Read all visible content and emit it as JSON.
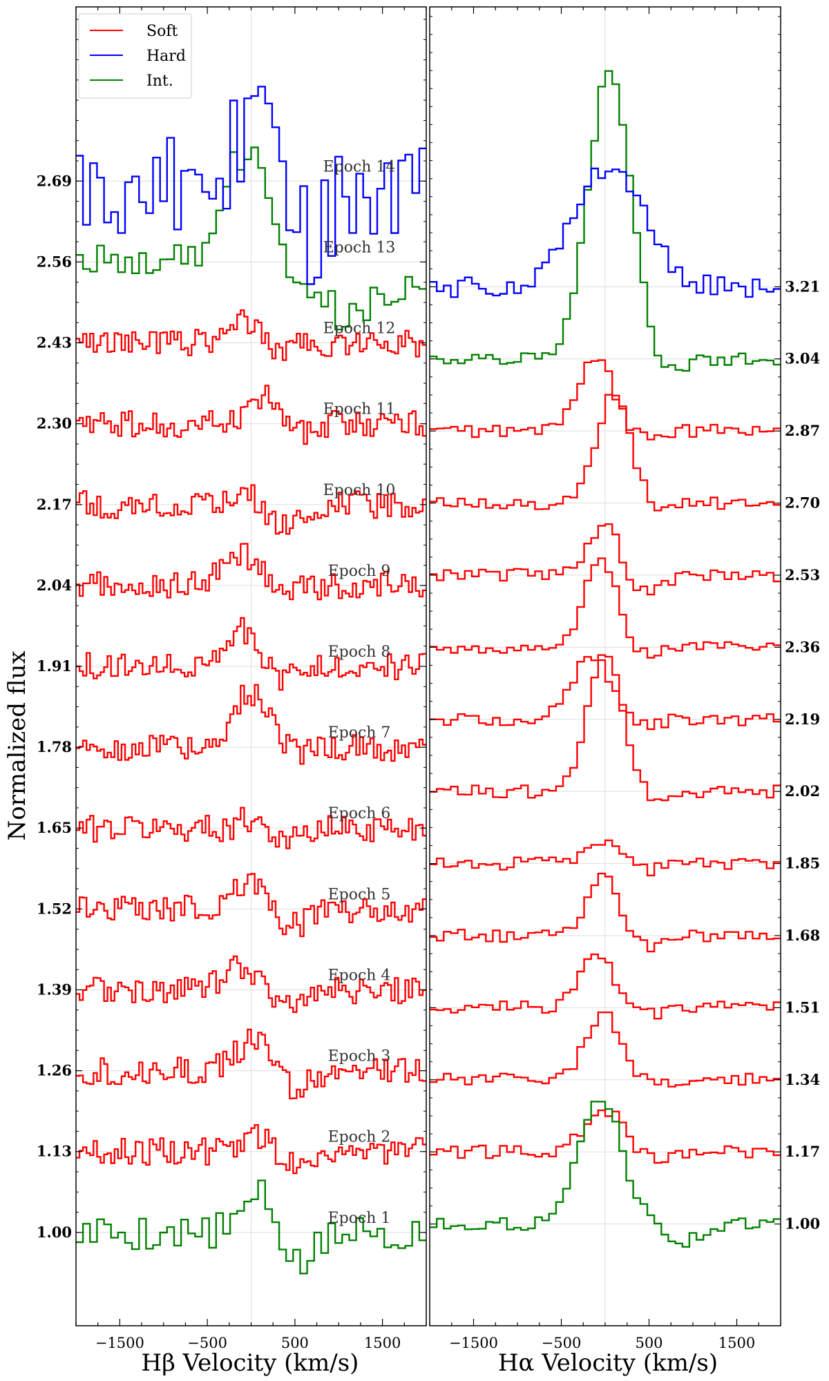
{
  "figure": {
    "ylabel": "Normalized flux",
    "xlabel_left": "Hβ Velocity (km/s)",
    "xlabel_right": "Hα Velocity (km/s)",
    "legend": {
      "soft": "Soft",
      "hard": "Hard",
      "int": "Int."
    }
  },
  "chart_data": {
    "type": "line",
    "style": "step",
    "panels": [
      {
        "name": "Hβ",
        "xlim": [
          -2000,
          2000
        ],
        "xticks": [
          -1500,
          -500,
          500,
          1500
        ],
        "xtick_labels": [
          "−1500",
          "−500",
          "500",
          "1500"
        ],
        "ylim": [
          0.85,
          2.97
        ],
        "yticks": [
          1.0,
          1.13,
          1.26,
          1.39,
          1.52,
          1.65,
          1.78,
          1.91,
          2.04,
          2.17,
          2.3,
          2.43,
          2.56,
          2.69
        ],
        "ytick_labels": [
          "1.00",
          "1.13",
          "1.26",
          "1.39",
          "1.52",
          "1.65",
          "1.78",
          "1.91",
          "2.04",
          "2.17",
          "2.30",
          "2.43",
          "2.56",
          "2.69"
        ],
        "ytick_side": "left"
      },
      {
        "name": "Hα",
        "xlim": [
          -2000,
          2000
        ],
        "xticks": [
          -1500,
          -500,
          500,
          1500
        ],
        "xtick_labels": [
          "−1500",
          "−500",
          "500",
          "1500"
        ],
        "ylim": [
          0.76,
          3.87
        ],
        "yticks": [
          1.0,
          1.17,
          1.34,
          1.51,
          1.68,
          1.85,
          2.02,
          2.19,
          2.36,
          2.53,
          2.7,
          2.87,
          3.04,
          3.21
        ],
        "ytick_labels": [
          "1.00",
          "1.17",
          "1.34",
          "1.51",
          "1.68",
          "1.85",
          "2.02",
          "2.19",
          "2.36",
          "2.53",
          "2.70",
          "2.87",
          "3.04",
          "3.21"
        ],
        "ytick_side": "right"
      }
    ],
    "legend_position": "top-left",
    "grid": true,
    "colors": {
      "Soft": "#ff0000",
      "Hard": "#0000ff",
      "Int.": "#008000"
    },
    "epochs": [
      {
        "label": "Epoch 1",
        "state": "Int.",
        "beta_offset": 1.0,
        "alpha_offset": 1.0,
        "beta_peak": 0.06,
        "beta_peak_v": 100,
        "beta_peak_w": 180,
        "beta_abs": 0.05,
        "beta_abs_v": 550,
        "alpha_peak": 0.3,
        "alpha_peak_v": -50,
        "alpha_peak_w": 240,
        "alpha_abs": 0.04,
        "alpha_abs_v": 900
      },
      {
        "label": "Epoch 2",
        "state": "Soft",
        "beta_offset": 1.13,
        "alpha_offset": 1.17,
        "beta_peak": 0.03,
        "beta_peak_v": 80,
        "beta_peak_w": 180,
        "beta_abs": 0.02,
        "beta_abs_v": 450,
        "alpha_peak": 0.1,
        "alpha_peak_v": 0,
        "alpha_peak_w": 220,
        "alpha_abs": 0.02,
        "alpha_abs_v": 500
      },
      {
        "label": "Epoch 3",
        "state": "Soft",
        "beta_offset": 1.26,
        "alpha_offset": 1.34,
        "beta_peak": 0.05,
        "beta_peak_v": 50,
        "beta_peak_w": 200,
        "beta_abs": 0.03,
        "beta_abs_v": 450,
        "alpha_peak": 0.15,
        "alpha_peak_v": 0,
        "alpha_peak_w": 220,
        "alpha_abs": 0.02,
        "alpha_abs_v": 500
      },
      {
        "label": "Epoch 4",
        "state": "Soft",
        "beta_offset": 1.39,
        "alpha_offset": 1.51,
        "beta_peak": 0.04,
        "beta_peak_v": -100,
        "beta_peak_w": 200,
        "beta_abs": 0.02,
        "beta_abs_v": 350,
        "alpha_peak": 0.13,
        "alpha_peak_v": -100,
        "alpha_peak_w": 200,
        "alpha_abs": 0.02,
        "alpha_abs_v": 400
      },
      {
        "label": "Epoch 5",
        "state": "Soft",
        "beta_offset": 1.52,
        "alpha_offset": 1.68,
        "beta_peak": 0.05,
        "beta_peak_v": 0,
        "beta_peak_w": 200,
        "beta_abs": 0.03,
        "beta_abs_v": 450,
        "alpha_peak": 0.15,
        "alpha_peak_v": 0,
        "alpha_peak_w": 200,
        "alpha_abs": 0.04,
        "alpha_abs_v": 350
      },
      {
        "label": "Epoch 6",
        "state": "Soft",
        "beta_offset": 1.65,
        "alpha_offset": 1.85,
        "beta_peak": 0.02,
        "beta_peak_v": 50,
        "beta_peak_w": 150,
        "beta_abs": 0.02,
        "beta_abs_v": 400,
        "alpha_peak": 0.06,
        "alpha_peak_v": 0,
        "alpha_peak_w": 200,
        "alpha_abs": 0.02,
        "alpha_abs_v": 400
      },
      {
        "label": "Epoch 7",
        "state": "Soft",
        "beta_offset": 1.78,
        "alpha_offset": 2.02,
        "beta_peak": 0.09,
        "beta_peak_v": 0,
        "beta_peak_w": 200,
        "beta_abs": 0.01,
        "beta_abs_v": 400,
        "alpha_peak": 0.33,
        "alpha_peak_v": 0,
        "alpha_peak_w": 200,
        "alpha_abs": 0.02,
        "alpha_abs_v": 500
      },
      {
        "label": "Epoch 8",
        "state": "Soft",
        "beta_offset": 1.91,
        "alpha_offset": 2.19,
        "beta_peak": 0.06,
        "beta_peak_v": -100,
        "beta_peak_w": 180,
        "beta_abs": 0.02,
        "beta_abs_v": 400,
        "alpha_peak": 0.15,
        "alpha_peak_v": -150,
        "alpha_peak_w": 220,
        "alpha_abs": 0.02,
        "alpha_abs_v": 350
      },
      {
        "label": "Epoch 9",
        "state": "Soft",
        "beta_offset": 2.04,
        "alpha_offset": 2.36,
        "beta_peak": 0.05,
        "beta_peak_v": -100,
        "beta_peak_w": 200,
        "beta_abs": 0.01,
        "beta_abs_v": 400,
        "alpha_peak": 0.22,
        "alpha_peak_v": -50,
        "alpha_peak_w": 180,
        "alpha_abs": 0.02,
        "alpha_abs_v": 400
      },
      {
        "label": "Epoch 10",
        "state": "Soft",
        "beta_offset": 2.17,
        "alpha_offset": 2.53,
        "beta_peak": 0.02,
        "beta_peak_v": 50,
        "beta_peak_w": 180,
        "beta_abs": 0.04,
        "beta_abs_v": 350,
        "alpha_peak": 0.12,
        "alpha_peak_v": 0,
        "alpha_peak_w": 200,
        "alpha_abs": 0.05,
        "alpha_abs_v": 400
      },
      {
        "label": "Epoch 11",
        "state": "Soft",
        "beta_offset": 2.3,
        "alpha_offset": 2.7,
        "beta_peak": 0.05,
        "beta_peak_v": 150,
        "beta_peak_w": 150,
        "beta_abs": 0.02,
        "beta_abs_v": 450,
        "alpha_peak": 0.26,
        "alpha_peak_v": 100,
        "alpha_peak_w": 200,
        "alpha_abs": 0.02,
        "alpha_abs_v": 500
      },
      {
        "label": "Epoch 12",
        "state": "Soft",
        "beta_offset": 2.43,
        "alpha_offset": 2.87,
        "beta_peak": 0.04,
        "beta_peak_v": -100,
        "beta_peak_w": 150,
        "beta_abs": 0.01,
        "beta_abs_v": 350,
        "alpha_peak": 0.18,
        "alpha_peak_v": -100,
        "alpha_peak_w": 200,
        "alpha_abs": 0.02,
        "alpha_abs_v": 400
      },
      {
        "label": "Epoch 13",
        "state": "Int.",
        "beta_offset": 2.56,
        "alpha_offset": 3.04,
        "beta_peak": 0.18,
        "beta_peak_v": -50,
        "beta_peak_w": 260,
        "beta_abs": 0.05,
        "beta_abs_v": 1100,
        "alpha_peak": 0.68,
        "alpha_peak_v": 50,
        "alpha_peak_w": 240,
        "alpha_abs": 0.03,
        "alpha_abs_v": 700
      },
      {
        "label": "Epoch 14",
        "state": "Hard",
        "beta_offset": 2.69,
        "alpha_offset": 3.21,
        "beta_peak": 0.12,
        "beta_peak_v": 50,
        "beta_peak_w": 200,
        "beta_abs": 0.09,
        "beta_abs_v": 650,
        "alpha_peak": 0.28,
        "alpha_peak_v": 50,
        "alpha_peak_w": 400,
        "alpha_abs": 0.01,
        "alpha_abs_v": 800
      }
    ]
  }
}
